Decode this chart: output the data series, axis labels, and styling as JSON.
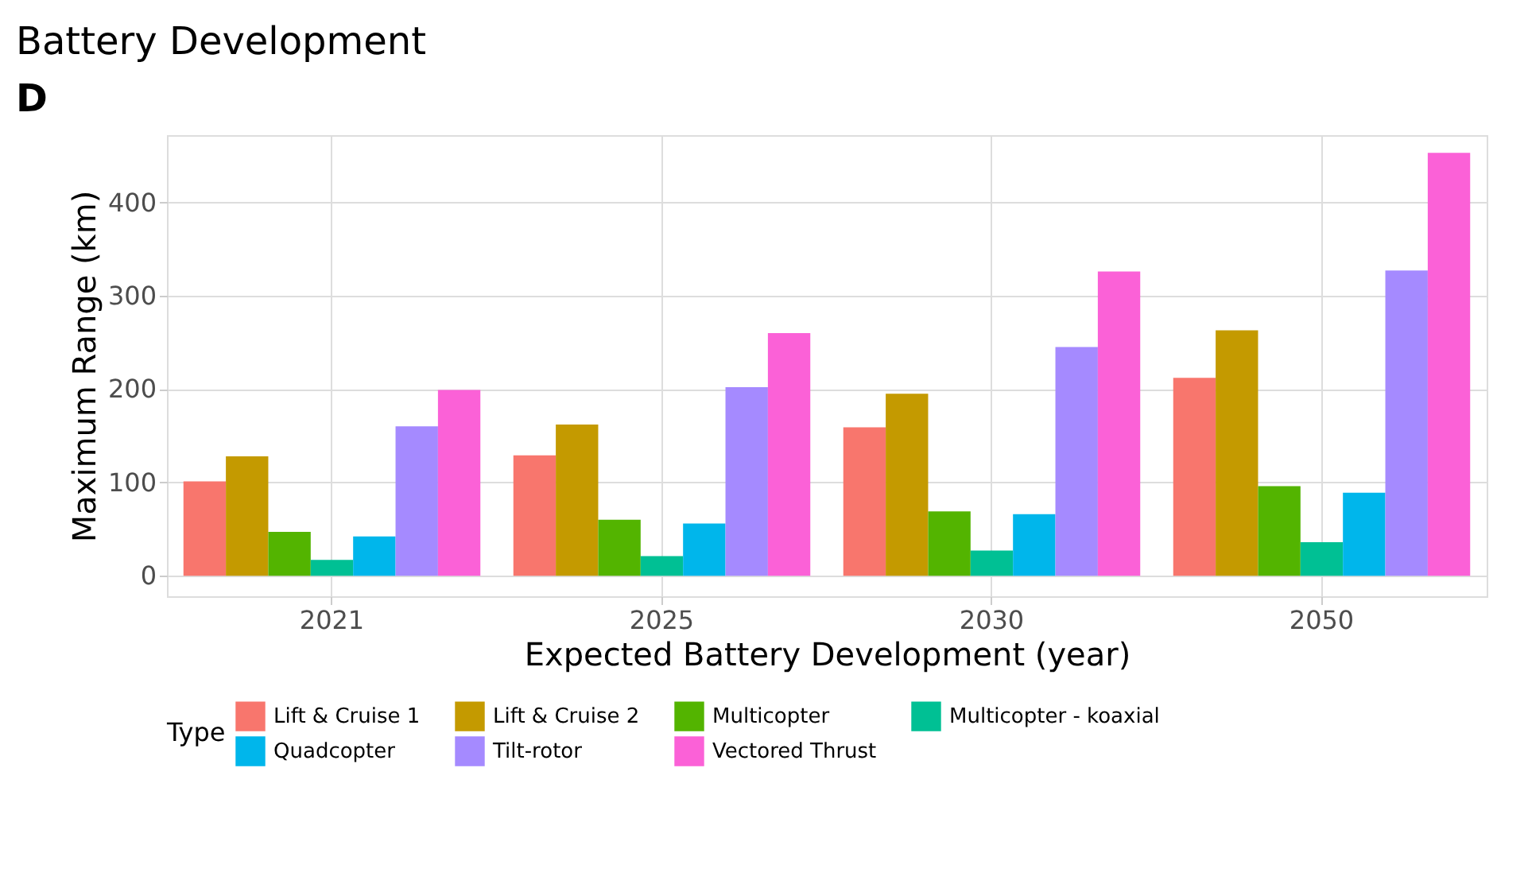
{
  "chart_data": {
    "type": "bar",
    "title": "Battery Development",
    "annotations": [
      "D"
    ],
    "xlabel": "Expected Battery Development (year)",
    "ylabel": "Maximum Range (km)",
    "legend_title": "Type",
    "categories": [
      "2021",
      "2025",
      "2030",
      "2050"
    ],
    "series": [
      {
        "name": "Lift & Cruise 1",
        "color": "#f8766d",
        "values": [
          101,
          129,
          159,
          212
        ]
      },
      {
        "name": "Lift & Cruise 2",
        "color": "#c49a00",
        "values": [
          128,
          162,
          195,
          263
        ]
      },
      {
        "name": "Multicopter",
        "color": "#53b400",
        "values": [
          47,
          60,
          69,
          96
        ]
      },
      {
        "name": "Multicopter - koaxial",
        "color": "#00c094",
        "values": [
          17,
          21,
          27,
          36
        ]
      },
      {
        "name": "Quadcopter",
        "color": "#00b6eb",
        "values": [
          42,
          56,
          66,
          89
        ]
      },
      {
        "name": "Tilt-rotor",
        "color": "#a58aff",
        "values": [
          160,
          202,
          245,
          327
        ]
      },
      {
        "name": "Vectored Thrust",
        "color": "#fb61d7",
        "values": [
          199,
          260,
          326,
          453
        ]
      }
    ],
    "ylim": [
      -22,
      472
    ],
    "yticks": [
      0,
      100,
      200,
      300,
      400
    ],
    "grid": true,
    "legend": "bottom"
  }
}
